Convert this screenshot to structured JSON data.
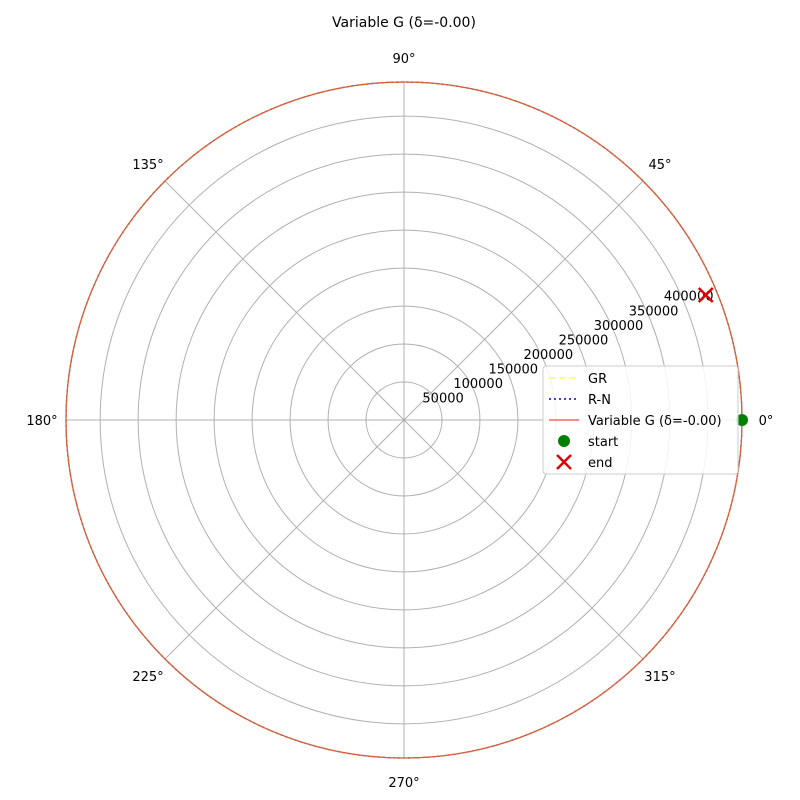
{
  "chart_data": {
    "type": "polar-line",
    "title": "Variable G (δ=-0.00)",
    "angle_ticks": [
      "0°",
      "45°",
      "90°",
      "135°",
      "180°",
      "225°",
      "270°",
      "315°"
    ],
    "radial_ticks": [
      "50000",
      "100000",
      "150000",
      "200000",
      "250000",
      "300000",
      "350000",
      "400000"
    ],
    "rlim": [
      0,
      445000
    ],
    "grid": true,
    "legend_position": "right",
    "series": [
      {
        "name": "GR",
        "style": "dashed",
        "color": "#ffff66",
        "r": 445000,
        "theta_deg": [
          0,
          360
        ]
      },
      {
        "name": "R-N",
        "style": "dotted",
        "color": "#0000cc",
        "r": 445000,
        "theta_deg": [
          0,
          360
        ]
      },
      {
        "name": "Variable G (δ=-0.00)",
        "style": "solid",
        "color": "#ff6666",
        "r": 445000,
        "theta_deg": [
          0,
          360
        ]
      }
    ],
    "markers": [
      {
        "name": "start",
        "shape": "circle",
        "color": "#008000",
        "r": 445000,
        "theta_deg": 0
      },
      {
        "name": "end",
        "shape": "x",
        "color": "#e00000",
        "r": 430000,
        "theta_deg": 22.5
      }
    ],
    "legend": [
      "GR",
      "R-N",
      "Variable G (δ=-0.00)",
      "start",
      "end"
    ]
  }
}
